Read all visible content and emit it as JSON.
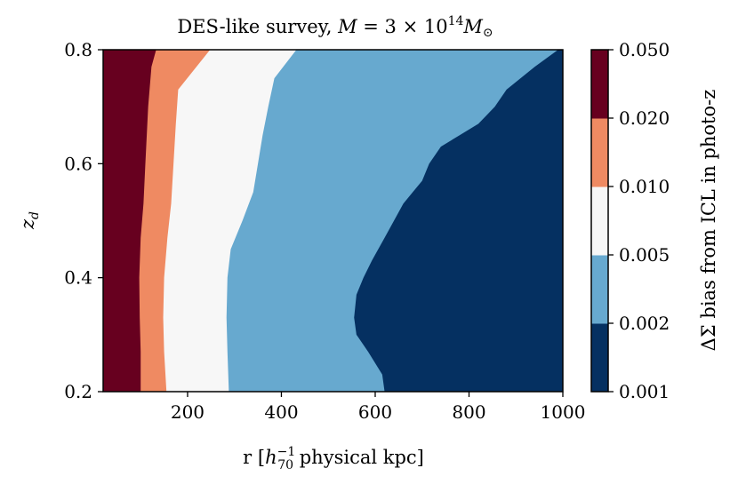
{
  "chart_data": {
    "type": "heatmap",
    "title_plain": "DES-like survey, ",
    "title_math": {
      "M": "M",
      "eq": " = 3 × 10",
      "exp": "14",
      "Msun": "M",
      "sun": "⊙"
    },
    "xlabel": {
      "pre": "r [",
      "h": "h",
      "sup": "−1",
      "sub": "70",
      "post": " physical kpc]"
    },
    "ylabel": {
      "z": "z",
      "sub": "d"
    },
    "xlim": [
      20,
      1000
    ],
    "ylim": [
      0.2,
      0.8
    ],
    "xticks": [
      200,
      400,
      600,
      800,
      1000
    ],
    "xtick_labels": [
      "200",
      "400",
      "600",
      "800",
      "1000"
    ],
    "yticks": [
      0.2,
      0.4,
      0.6,
      0.8
    ],
    "ytick_labels": [
      "0.2",
      "0.4",
      "0.6",
      "0.8"
    ],
    "colorbar": {
      "label": "ΔΣ bias from ICL in photo-z",
      "levels": [
        "0.001",
        "0.002",
        "0.005",
        "0.010",
        "0.020",
        "0.050"
      ],
      "colors": [
        "#053061",
        "#67a9cf",
        "#f7f7f7",
        "#ef8a62",
        "#67001f"
      ]
    },
    "regions": [
      {
        "name": "0.020-0.050",
        "color": "#67001f",
        "boundary_r": [
          [
            0.2,
            100
          ],
          [
            0.27,
            100
          ],
          [
            0.33,
            98
          ],
          [
            0.4,
            97
          ],
          [
            0.47,
            100
          ],
          [
            0.53,
            106
          ],
          [
            0.6,
            110
          ],
          [
            0.7,
            116
          ],
          [
            0.77,
            123
          ],
          [
            0.8,
            133
          ]
        ]
      },
      {
        "name": "0.010-0.020",
        "color": "#ef8a62",
        "boundary_r": [
          [
            0.2,
            155
          ],
          [
            0.27,
            150
          ],
          [
            0.33,
            148
          ],
          [
            0.4,
            150
          ],
          [
            0.47,
            157
          ],
          [
            0.53,
            165
          ],
          [
            0.6,
            170
          ],
          [
            0.67,
            175
          ],
          [
            0.73,
            180
          ],
          [
            0.8,
            248
          ]
        ]
      },
      {
        "name": "0.005-0.010",
        "color": "#f7f7f7",
        "boundary_r": [
          [
            0.2,
            288
          ],
          [
            0.27,
            285
          ],
          [
            0.33,
            283
          ],
          [
            0.4,
            285
          ],
          [
            0.45,
            292
          ],
          [
            0.5,
            317
          ],
          [
            0.55,
            340
          ],
          [
            0.6,
            350
          ],
          [
            0.65,
            360
          ],
          [
            0.7,
            372
          ],
          [
            0.75,
            385
          ],
          [
            0.8,
            432
          ]
        ]
      },
      {
        "name": "0.002-0.005",
        "color": "#67a9cf",
        "boundary_r": [
          [
            0.2,
            620
          ],
          [
            0.23,
            615
          ],
          [
            0.27,
            585
          ],
          [
            0.3,
            560
          ],
          [
            0.33,
            555
          ],
          [
            0.37,
            560
          ],
          [
            0.4,
            575
          ],
          [
            0.43,
            593
          ],
          [
            0.47,
            620
          ],
          [
            0.5,
            640
          ],
          [
            0.53,
            660
          ],
          [
            0.55,
            680
          ],
          [
            0.57,
            700
          ],
          [
            0.6,
            715
          ],
          [
            0.63,
            740
          ],
          [
            0.65,
            780
          ],
          [
            0.67,
            820
          ],
          [
            0.7,
            855
          ],
          [
            0.73,
            880
          ],
          [
            0.77,
            940
          ],
          [
            0.8,
            990
          ]
        ]
      },
      {
        "name": "0.001-0.002",
        "color": "#053061",
        "boundary_r": []
      }
    ]
  }
}
